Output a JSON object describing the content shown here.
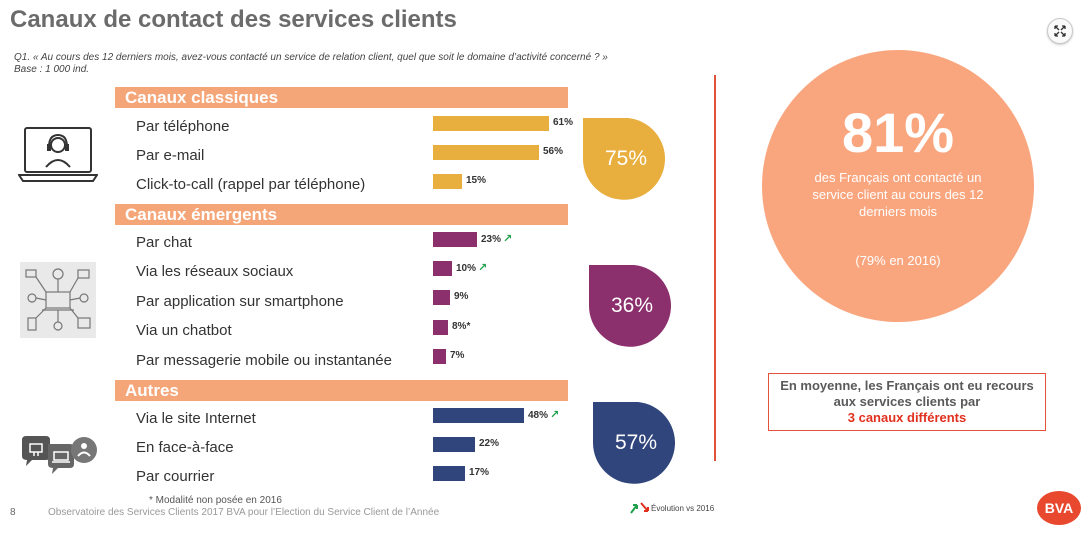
{
  "title": "Canaux de contact des services clients",
  "question": {
    "line1": "Q1. « Au cours des 12 derniers mois, avez-vous contacté un service de relation client, quel que soit le domaine d’activité concerné ? »",
    "line2": "Base : 1 000 ind."
  },
  "icons": {
    "expand": "expand-icon",
    "classiques": "laptop-headset-icon",
    "emergents": "network-devices-icon",
    "autres": "people-bubbles-icon",
    "evolution_up": "arrow-up-green-icon",
    "evolution_down": "arrow-down-red-icon"
  },
  "colors": {
    "header": "#f5a679",
    "classiques": "#e8ae3e",
    "emergents": "#8b2f6d",
    "autres": "#2f457b",
    "circle": "#f9a67f",
    "accent_red": "#e2523a",
    "evolution_up": "#1ea14a"
  },
  "chart_data": {
    "type": "bar",
    "orientation": "horizontal",
    "unit": "%",
    "xlim": [
      0,
      100
    ],
    "groups": [
      {
        "header": "Canaux classiques",
        "total": "75%",
        "items": [
          {
            "label": "Par téléphone",
            "value": 61,
            "value_label": "61%",
            "evolution": ""
          },
          {
            "label": "Par e-mail",
            "value": 56,
            "value_label": "56%",
            "evolution": ""
          },
          {
            "label": "Click-to-call (rappel par téléphone)",
            "value": 15,
            "value_label": "15%",
            "evolution": ""
          }
        ]
      },
      {
        "header": "Canaux émergents",
        "total": "36%",
        "items": [
          {
            "label": "Par chat",
            "value": 23,
            "value_label": "23%",
            "evolution": "up"
          },
          {
            "label": "Via les réseaux sociaux",
            "value": 10,
            "value_label": "10%",
            "evolution": "up"
          },
          {
            "label": "Par application sur smartphone",
            "value": 9,
            "value_label": "9%",
            "evolution": ""
          },
          {
            "label": "Via un chatbot",
            "value": 8,
            "value_label": "8%*",
            "evolution": ""
          },
          {
            "label": "Par messagerie mobile ou instantanée",
            "value": 7,
            "value_label": "7%",
            "evolution": ""
          }
        ]
      },
      {
        "header": "Autres",
        "total": "57%",
        "items": [
          {
            "label": "Via le site Internet",
            "value": 48,
            "value_label": "48%",
            "evolution": "up"
          },
          {
            "label": "En face-à-face",
            "value": 22,
            "value_label": "22%",
            "evolution": ""
          },
          {
            "label": "Par courrier",
            "value": 17,
            "value_label": "17%",
            "evolution": ""
          }
        ]
      }
    ]
  },
  "summary": {
    "big_pct": "81%",
    "desc": "des Français ont contacté un service client au cours des 12 derniers mois",
    "prev": "(79% en 2016)"
  },
  "average_box": {
    "text": "En moyenne, les Français ont eu recours aux services clients par",
    "highlight": "3 canaux différents"
  },
  "footnote": "* Modalité non posée en 2016",
  "footer": {
    "page_number": "8",
    "source": "Observatoire des Services Clients 2017 BVA pour l’Election du Service Client de l’Année",
    "legend": "Évolution vs 2016",
    "logo": "BVA"
  }
}
